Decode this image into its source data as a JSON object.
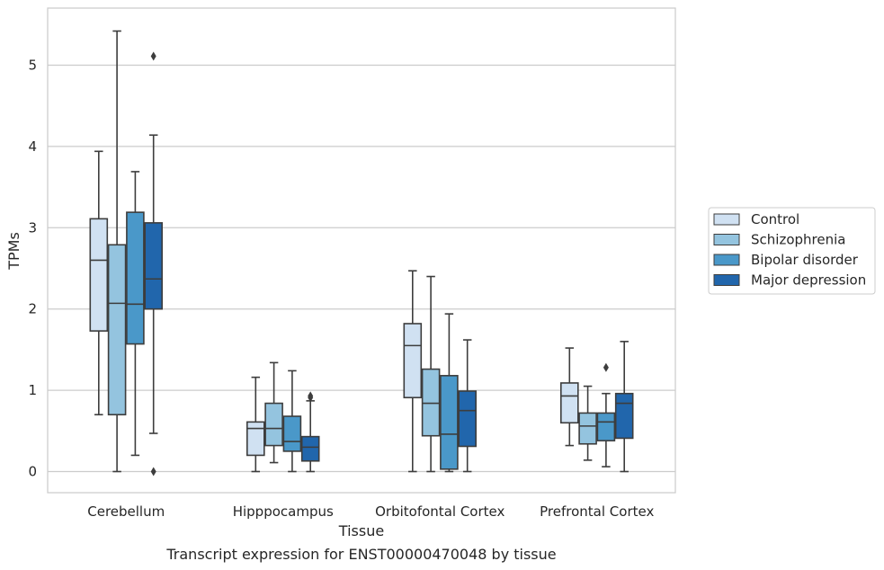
{
  "chart_data": {
    "type": "box",
    "title": "Transcript expression for ENST00000470048 by tissue",
    "xlabel": "Tissue",
    "ylabel": "TPMs",
    "ylim": [
      -0.27,
      5.7
    ],
    "yticks": [
      0,
      1,
      2,
      3,
      4,
      5
    ],
    "grid": true,
    "legend_position": "right",
    "categories": [
      "Cerebellum",
      "Hipppocampus",
      "Orbitofontal Cortex",
      "Prefrontal Cortex"
    ],
    "series": [
      {
        "name": "Control",
        "color": "#d0e1f2",
        "boxes": [
          {
            "whislo": 0.7,
            "q1": 1.73,
            "med": 2.6,
            "q3": 3.11,
            "whishi": 3.94,
            "fliers": []
          },
          {
            "whislo": 0.0,
            "q1": 0.2,
            "med": 0.53,
            "q3": 0.61,
            "whishi": 1.16,
            "fliers": []
          },
          {
            "whislo": 0.0,
            "q1": 0.91,
            "med": 1.55,
            "q3": 1.82,
            "whishi": 2.47,
            "fliers": []
          },
          {
            "whislo": 0.32,
            "q1": 0.6,
            "med": 0.93,
            "q3": 1.09,
            "whishi": 1.52,
            "fliers": []
          }
        ]
      },
      {
        "name": "Schizophrenia",
        "color": "#94c4df",
        "boxes": [
          {
            "whislo": 0.0,
            "q1": 0.7,
            "med": 2.07,
            "q3": 2.79,
            "whishi": 5.42,
            "fliers": []
          },
          {
            "whislo": 0.11,
            "q1": 0.32,
            "med": 0.53,
            "q3": 0.84,
            "whishi": 1.34,
            "fliers": []
          },
          {
            "whislo": 0.0,
            "q1": 0.44,
            "med": 0.84,
            "q3": 1.26,
            "whishi": 2.4,
            "fliers": []
          },
          {
            "whislo": 0.14,
            "q1": 0.34,
            "med": 0.56,
            "q3": 0.72,
            "whishi": 1.05,
            "fliers": []
          }
        ]
      },
      {
        "name": "Bipolar disorder",
        "color": "#4a98c9",
        "boxes": [
          {
            "whislo": 0.2,
            "q1": 1.57,
            "med": 2.06,
            "q3": 3.19,
            "whishi": 3.69,
            "fliers": []
          },
          {
            "whislo": 0.0,
            "q1": 0.25,
            "med": 0.37,
            "q3": 0.68,
            "whishi": 1.24,
            "fliers": []
          },
          {
            "whislo": 0.0,
            "q1": 0.03,
            "med": 0.46,
            "q3": 1.18,
            "whishi": 1.94,
            "fliers": []
          },
          {
            "whislo": 0.06,
            "q1": 0.38,
            "med": 0.61,
            "q3": 0.72,
            "whishi": 0.96,
            "fliers": [
              1.28
            ]
          }
        ]
      },
      {
        "name": "Major depression",
        "color": "#2166ac",
        "boxes": [
          {
            "whislo": 0.47,
            "q1": 2.0,
            "med": 2.37,
            "q3": 3.06,
            "whishi": 4.14,
            "fliers": [
              5.11,
              0.0
            ]
          },
          {
            "whislo": 0.0,
            "q1": 0.13,
            "med": 0.3,
            "q3": 0.43,
            "whishi": 0.87,
            "fliers": [
              0.91,
              0.93
            ]
          },
          {
            "whislo": 0.0,
            "q1": 0.31,
            "med": 0.75,
            "q3": 0.99,
            "whishi": 1.62,
            "fliers": []
          },
          {
            "whislo": 0.0,
            "q1": 0.41,
            "med": 0.84,
            "q3": 0.96,
            "whishi": 1.6,
            "fliers": []
          }
        ]
      }
    ]
  }
}
